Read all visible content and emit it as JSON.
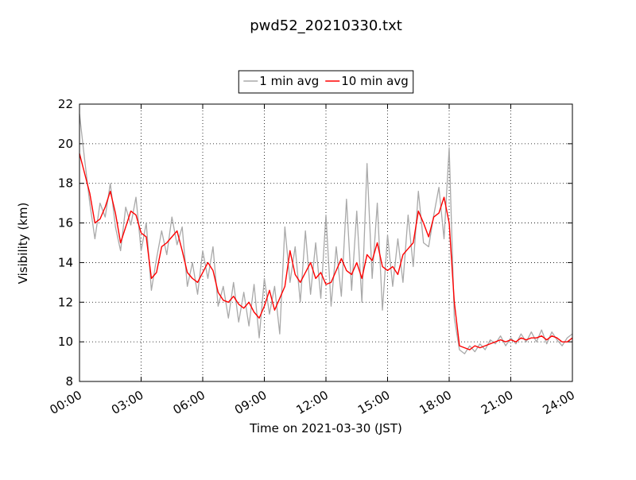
{
  "chart_data": {
    "type": "line",
    "title": "pwd52_20210330.txt",
    "xlabel": "Time on 2021-03-30 (JST)",
    "ylabel": "Visibility (km)",
    "x": [
      0,
      0.25,
      0.5,
      0.75,
      1,
      1.25,
      1.5,
      1.75,
      2,
      2.25,
      2.5,
      2.75,
      3,
      3.25,
      3.5,
      3.75,
      4,
      4.25,
      4.5,
      4.75,
      5,
      5.25,
      5.5,
      5.75,
      6,
      6.25,
      6.5,
      6.75,
      7,
      7.25,
      7.5,
      7.75,
      8,
      8.25,
      8.5,
      8.75,
      9,
      9.25,
      9.5,
      9.75,
      10,
      10.25,
      10.5,
      10.75,
      11,
      11.25,
      11.5,
      11.75,
      12,
      12.25,
      12.5,
      12.75,
      13,
      13.25,
      13.5,
      13.75,
      14,
      14.25,
      14.5,
      14.75,
      15,
      15.25,
      15.5,
      15.75,
      16,
      16.25,
      16.5,
      16.75,
      17,
      17.25,
      17.5,
      17.75,
      18,
      18.25,
      18.5,
      18.75,
      19,
      19.25,
      19.5,
      19.75,
      20,
      20.25,
      20.5,
      20.75,
      21,
      21.25,
      21.5,
      21.75,
      22,
      22.25,
      22.5,
      22.75,
      23,
      23.25,
      23.5,
      23.75,
      24
    ],
    "series": [
      {
        "name": "1 min avg",
        "color": "#a9a9a9",
        "values": [
          21.5,
          19.2,
          17.0,
          15.2,
          17.0,
          16.3,
          18.0,
          15.8,
          14.6,
          16.8,
          15.9,
          17.3,
          14.6,
          16.0,
          12.6,
          14.2,
          15.6,
          14.4,
          16.3,
          14.9,
          15.8,
          12.8,
          14.0,
          12.4,
          14.6,
          13.2,
          14.8,
          11.8,
          12.8,
          11.2,
          13.0,
          11.0,
          12.5,
          10.8,
          12.9,
          10.2,
          13.2,
          11.4,
          12.8,
          10.4,
          15.8,
          13.0,
          14.8,
          12.0,
          15.6,
          12.4,
          15.0,
          12.2,
          16.4,
          11.8,
          14.8,
          12.3,
          17.2,
          12.6,
          16.6,
          12.0,
          19.0,
          13.2,
          17.0,
          11.6,
          15.4,
          12.8,
          15.2,
          13.0,
          16.4,
          13.8,
          17.6,
          15.0,
          14.8,
          16.4,
          17.8,
          15.2,
          19.8,
          11.2,
          9.6,
          9.4,
          9.8,
          9.5,
          9.9,
          9.6,
          10.1,
          9.9,
          10.3,
          9.8,
          10.2,
          9.9,
          10.4,
          10.0,
          10.5,
          10.0,
          10.6,
          9.9,
          10.5,
          10.1,
          9.8,
          10.2,
          10.4
        ]
      },
      {
        "name": "10 min avg",
        "color": "#ff0000",
        "values": [
          19.5,
          18.5,
          17.5,
          16.0,
          16.2,
          16.8,
          17.6,
          16.5,
          15.0,
          15.8,
          16.6,
          16.4,
          15.5,
          15.3,
          13.2,
          13.5,
          14.8,
          15.0,
          15.3,
          15.6,
          14.6,
          13.5,
          13.2,
          13.0,
          13.5,
          14.0,
          13.6,
          12.5,
          12.1,
          12.0,
          12.3,
          11.9,
          11.7,
          12.0,
          11.5,
          11.2,
          11.8,
          12.6,
          11.6,
          12.2,
          12.8,
          14.6,
          13.4,
          13.0,
          13.5,
          14.0,
          13.2,
          13.5,
          12.9,
          13.0,
          13.6,
          14.2,
          13.6,
          13.4,
          14.0,
          13.2,
          14.4,
          14.1,
          15.0,
          13.8,
          13.6,
          13.8,
          13.4,
          14.4,
          14.7,
          15.0,
          16.6,
          16.0,
          15.3,
          16.3,
          16.5,
          17.3,
          16.0,
          12.0,
          9.8,
          9.7,
          9.6,
          9.8,
          9.7,
          9.8,
          9.9,
          10.0,
          10.1,
          10.0,
          10.1,
          10.0,
          10.2,
          10.1,
          10.2,
          10.2,
          10.3,
          10.1,
          10.3,
          10.2,
          10.0,
          10.0,
          10.2
        ]
      }
    ],
    "xlim": [
      0,
      24
    ],
    "xticks": [
      {
        "value": 0,
        "label": "00:00"
      },
      {
        "value": 3,
        "label": "03:00"
      },
      {
        "value": 6,
        "label": "06:00"
      },
      {
        "value": 9,
        "label": "09:00"
      },
      {
        "value": 12,
        "label": "12:00"
      },
      {
        "value": 15,
        "label": "15:00"
      },
      {
        "value": 18,
        "label": "18:00"
      },
      {
        "value": 21,
        "label": "21:00"
      },
      {
        "value": 24,
        "label": "24:00"
      }
    ],
    "ylim": [
      8,
      22
    ],
    "yticks": [
      8,
      10,
      12,
      14,
      16,
      18,
      20,
      22
    ],
    "grid": true,
    "legend": "top"
  }
}
